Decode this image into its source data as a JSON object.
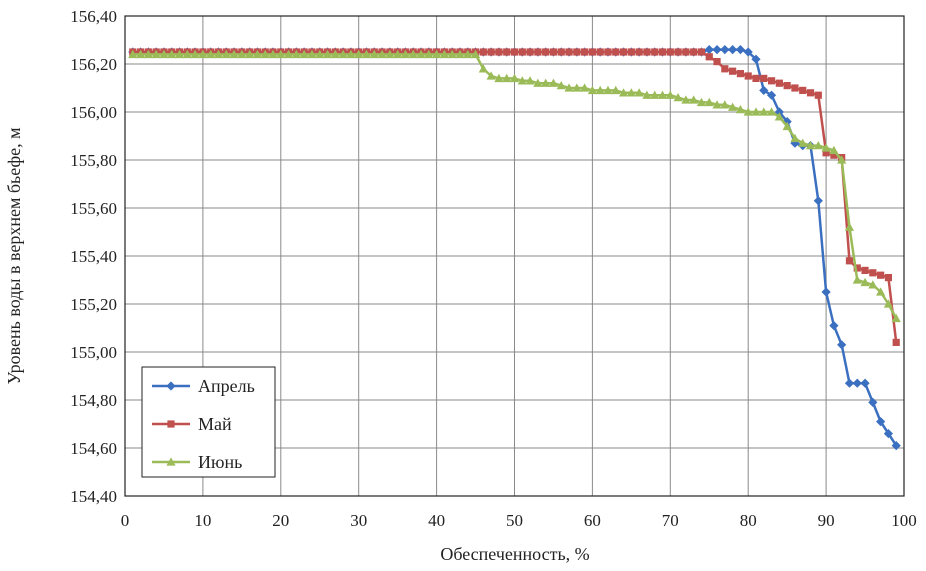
{
  "chart_data": {
    "type": "line",
    "xlabel": "Обеспеченность, %",
    "ylabel": "Уровень воды в верхнем бьефе, м",
    "xlim": [
      0,
      100
    ],
    "ylim": [
      154.4,
      156.4
    ],
    "xticks": [
      "0",
      "10",
      "20",
      "30",
      "40",
      "50",
      "60",
      "70",
      "80",
      "90",
      "100"
    ],
    "yticks": [
      "154,40",
      "154,60",
      "154,80",
      "155,00",
      "155,20",
      "155,40",
      "155,60",
      "155,80",
      "156,00",
      "156,20",
      "156,40"
    ],
    "grid": true,
    "legend_position": "bottom-left",
    "series": [
      {
        "name": "Апрель",
        "color": "#3b6fc0",
        "marker": "diamond",
        "x": [
          1,
          2,
          3,
          4,
          5,
          6,
          7,
          8,
          9,
          10,
          11,
          12,
          13,
          14,
          15,
          16,
          17,
          18,
          19,
          20,
          21,
          22,
          23,
          24,
          25,
          26,
          27,
          28,
          29,
          30,
          31,
          32,
          33,
          34,
          35,
          36,
          37,
          38,
          39,
          40,
          41,
          42,
          43,
          44,
          45,
          46,
          47,
          48,
          49,
          50,
          51,
          52,
          53,
          54,
          55,
          56,
          57,
          58,
          59,
          60,
          61,
          62,
          63,
          64,
          65,
          66,
          67,
          68,
          69,
          70,
          71,
          72,
          73,
          74,
          75,
          76,
          77,
          78,
          79,
          80,
          81,
          82,
          83,
          84,
          85,
          86,
          87,
          88,
          89,
          90,
          91,
          92,
          93,
          94,
          95,
          96,
          97,
          98,
          99
        ],
        "y": [
          156.25,
          156.25,
          156.25,
          156.25,
          156.25,
          156.25,
          156.25,
          156.25,
          156.25,
          156.25,
          156.25,
          156.25,
          156.25,
          156.25,
          156.25,
          156.25,
          156.25,
          156.25,
          156.25,
          156.25,
          156.25,
          156.25,
          156.25,
          156.25,
          156.25,
          156.25,
          156.25,
          156.25,
          156.25,
          156.25,
          156.25,
          156.25,
          156.25,
          156.25,
          156.25,
          156.25,
          156.25,
          156.25,
          156.25,
          156.25,
          156.25,
          156.25,
          156.25,
          156.25,
          156.25,
          156.25,
          156.25,
          156.25,
          156.25,
          156.25,
          156.25,
          156.25,
          156.25,
          156.25,
          156.25,
          156.25,
          156.25,
          156.25,
          156.25,
          156.25,
          156.25,
          156.25,
          156.25,
          156.25,
          156.25,
          156.25,
          156.25,
          156.25,
          156.25,
          156.25,
          156.25,
          156.25,
          156.25,
          156.25,
          156.26,
          156.26,
          156.26,
          156.26,
          156.26,
          156.25,
          156.22,
          156.09,
          156.07,
          156.0,
          155.96,
          155.87,
          155.86,
          155.86,
          155.63,
          155.25,
          155.11,
          155.03,
          154.87,
          154.87,
          154.87,
          154.79,
          154.71,
          154.66,
          154.61
        ]
      },
      {
        "name": "Май",
        "color": "#c0504d",
        "marker": "square",
        "x": [
          1,
          2,
          3,
          4,
          5,
          6,
          7,
          8,
          9,
          10,
          11,
          12,
          13,
          14,
          15,
          16,
          17,
          18,
          19,
          20,
          21,
          22,
          23,
          24,
          25,
          26,
          27,
          28,
          29,
          30,
          31,
          32,
          33,
          34,
          35,
          36,
          37,
          38,
          39,
          40,
          41,
          42,
          43,
          44,
          45,
          46,
          47,
          48,
          49,
          50,
          51,
          52,
          53,
          54,
          55,
          56,
          57,
          58,
          59,
          60,
          61,
          62,
          63,
          64,
          65,
          66,
          67,
          68,
          69,
          70,
          71,
          72,
          73,
          74,
          75,
          76,
          77,
          78,
          79,
          80,
          81,
          82,
          83,
          84,
          85,
          86,
          87,
          88,
          89,
          90,
          91,
          92,
          93,
          94,
          95,
          96,
          97,
          98,
          99
        ],
        "y": [
          156.25,
          156.25,
          156.25,
          156.25,
          156.25,
          156.25,
          156.25,
          156.25,
          156.25,
          156.25,
          156.25,
          156.25,
          156.25,
          156.25,
          156.25,
          156.25,
          156.25,
          156.25,
          156.25,
          156.25,
          156.25,
          156.25,
          156.25,
          156.25,
          156.25,
          156.25,
          156.25,
          156.25,
          156.25,
          156.25,
          156.25,
          156.25,
          156.25,
          156.25,
          156.25,
          156.25,
          156.25,
          156.25,
          156.25,
          156.25,
          156.25,
          156.25,
          156.25,
          156.25,
          156.25,
          156.25,
          156.25,
          156.25,
          156.25,
          156.25,
          156.25,
          156.25,
          156.25,
          156.25,
          156.25,
          156.25,
          156.25,
          156.25,
          156.25,
          156.25,
          156.25,
          156.25,
          156.25,
          156.25,
          156.25,
          156.25,
          156.25,
          156.25,
          156.25,
          156.25,
          156.25,
          156.25,
          156.25,
          156.25,
          156.23,
          156.21,
          156.18,
          156.17,
          156.16,
          156.15,
          156.14,
          156.14,
          156.13,
          156.12,
          156.11,
          156.1,
          156.09,
          156.08,
          156.07,
          155.83,
          155.82,
          155.81,
          155.38,
          155.35,
          155.34,
          155.33,
          155.32,
          155.31,
          155.04
        ]
      },
      {
        "name": "Июнь",
        "color": "#9bbb59",
        "marker": "triangle",
        "x": [
          1,
          2,
          3,
          4,
          5,
          6,
          7,
          8,
          9,
          10,
          11,
          12,
          13,
          14,
          15,
          16,
          17,
          18,
          19,
          20,
          21,
          22,
          23,
          24,
          25,
          26,
          27,
          28,
          29,
          30,
          31,
          32,
          33,
          34,
          35,
          36,
          37,
          38,
          39,
          40,
          41,
          42,
          43,
          44,
          45,
          46,
          47,
          48,
          49,
          50,
          51,
          52,
          53,
          54,
          55,
          56,
          57,
          58,
          59,
          60,
          61,
          62,
          63,
          64,
          65,
          66,
          67,
          68,
          69,
          70,
          71,
          72,
          73,
          74,
          75,
          76,
          77,
          78,
          79,
          80,
          81,
          82,
          83,
          84,
          85,
          86,
          87,
          88,
          89,
          90,
          91,
          92,
          93,
          94,
          95,
          96,
          97,
          98,
          99
        ],
        "y": [
          156.24,
          156.24,
          156.24,
          156.24,
          156.24,
          156.24,
          156.24,
          156.24,
          156.24,
          156.24,
          156.24,
          156.24,
          156.24,
          156.24,
          156.24,
          156.24,
          156.24,
          156.24,
          156.24,
          156.24,
          156.24,
          156.24,
          156.24,
          156.24,
          156.24,
          156.24,
          156.24,
          156.24,
          156.24,
          156.24,
          156.24,
          156.24,
          156.24,
          156.24,
          156.24,
          156.24,
          156.24,
          156.24,
          156.24,
          156.24,
          156.24,
          156.24,
          156.24,
          156.24,
          156.24,
          156.18,
          156.15,
          156.14,
          156.14,
          156.14,
          156.13,
          156.13,
          156.12,
          156.12,
          156.12,
          156.11,
          156.1,
          156.1,
          156.1,
          156.09,
          156.09,
          156.09,
          156.09,
          156.08,
          156.08,
          156.08,
          156.07,
          156.07,
          156.07,
          156.07,
          156.06,
          156.05,
          156.05,
          156.04,
          156.04,
          156.03,
          156.03,
          156.02,
          156.01,
          156.0,
          156.0,
          156.0,
          156.0,
          155.98,
          155.94,
          155.89,
          155.87,
          155.86,
          155.86,
          155.85,
          155.84,
          155.8,
          155.52,
          155.3,
          155.29,
          155.28,
          155.25,
          155.2,
          155.14
        ]
      }
    ]
  }
}
